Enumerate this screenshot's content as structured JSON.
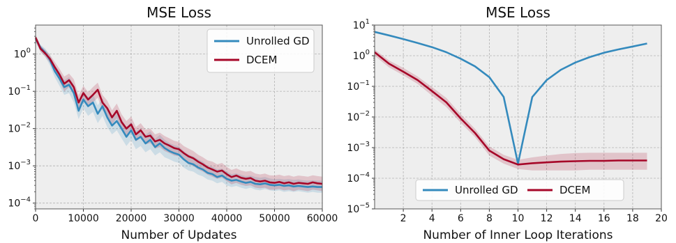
{
  "colors": {
    "unrolled_gd": "#348abd",
    "dcem": "#a60628",
    "plot_background": "#eeeeee",
    "grid": "#b2b2b2"
  },
  "chart_data": [
    {
      "type": "line",
      "title": "MSE Loss",
      "xlabel": "Number of Updates",
      "ylabel": "",
      "xlim": [
        0,
        60000
      ],
      "ylim": [
        7e-05,
        6
      ],
      "yscale": "log",
      "grid": true,
      "legend_placement": "top-right",
      "x_ticks": [
        {
          "value": 0,
          "label": "0"
        },
        {
          "value": 10000,
          "label": "10000"
        },
        {
          "value": 20000,
          "label": "20000"
        },
        {
          "value": 30000,
          "label": "30000"
        },
        {
          "value": 40000,
          "label": "40000"
        },
        {
          "value": 50000,
          "label": "50000"
        },
        {
          "value": 60000,
          "label": "60000"
        }
      ],
      "y_ticks": [
        {
          "value": 0.0001,
          "base": "10",
          "exp": "−4"
        },
        {
          "value": 0.001,
          "base": "10",
          "exp": "−3"
        },
        {
          "value": 0.01,
          "base": "10",
          "exp": "−2"
        },
        {
          "value": 0.1,
          "base": "10",
          "exp": "−1"
        },
        {
          "value": 1,
          "base": "10",
          "exp": "0"
        }
      ],
      "x": [
        0,
        1000,
        2000,
        3000,
        4000,
        5000,
        6000,
        7000,
        8000,
        9000,
        10000,
        11000,
        12000,
        13000,
        14000,
        15000,
        16000,
        17000,
        18000,
        19000,
        20000,
        21000,
        22000,
        23000,
        24000,
        25000,
        26000,
        27000,
        28000,
        29000,
        30000,
        31000,
        32000,
        33000,
        34000,
        35000,
        36000,
        37000,
        38000,
        39000,
        40000,
        41000,
        42000,
        43000,
        44000,
        45000,
        46000,
        47000,
        48000,
        49000,
        50000,
        51000,
        52000,
        53000,
        54000,
        55000,
        56000,
        57000,
        58000,
        59000,
        60000
      ],
      "series": [
        {
          "name": "Unrolled GD",
          "color": "#348abd",
          "values": [
            2.6,
            1.5,
            1.1,
            0.7,
            0.35,
            0.22,
            0.13,
            0.15,
            0.09,
            0.03,
            0.06,
            0.04,
            0.05,
            0.025,
            0.04,
            0.02,
            0.012,
            0.016,
            0.01,
            0.006,
            0.009,
            0.005,
            0.006,
            0.004,
            0.005,
            0.0032,
            0.004,
            0.003,
            0.0025,
            0.0022,
            0.002,
            0.0015,
            0.0012,
            0.0011,
            0.0009,
            0.0008,
            0.00065,
            0.0006,
            0.0005,
            0.00055,
            0.00045,
            0.0004,
            0.00042,
            0.00038,
            0.00035,
            0.00037,
            0.00033,
            0.00032,
            0.00034,
            0.00031,
            0.0003,
            0.00031,
            0.00029,
            0.0003,
            0.00028,
            0.00029,
            0.00028,
            0.00027,
            0.00028,
            0.00027,
            0.00027
          ],
          "lower": [
            2.1,
            1.2,
            0.85,
            0.5,
            0.24,
            0.14,
            0.08,
            0.09,
            0.05,
            0.018,
            0.035,
            0.022,
            0.028,
            0.014,
            0.022,
            0.011,
            0.007,
            0.009,
            0.0055,
            0.0034,
            0.005,
            0.0028,
            0.0034,
            0.0023,
            0.0028,
            0.0019,
            0.0023,
            0.0017,
            0.0015,
            0.0013,
            0.0012,
            0.0009,
            0.00075,
            0.0007,
            0.00058,
            0.00052,
            0.00043,
            0.0004,
            0.00034,
            0.00037,
            0.0003,
            0.00027,
            0.00029,
            0.00026,
            0.00024,
            0.00026,
            0.00023,
            0.00022,
            0.00024,
            0.00022,
            0.00021,
            0.00022,
            0.0002,
            0.00021,
            0.0002,
            0.00021,
            0.0002,
            0.00019,
            0.0002,
            0.00019,
            0.00019
          ],
          "upper": [
            3.1,
            1.8,
            1.4,
            0.95,
            0.5,
            0.33,
            0.2,
            0.24,
            0.15,
            0.05,
            0.1,
            0.07,
            0.085,
            0.042,
            0.065,
            0.034,
            0.021,
            0.027,
            0.017,
            0.011,
            0.015,
            0.0085,
            0.01,
            0.0068,
            0.0085,
            0.0053,
            0.0068,
            0.005,
            0.0041,
            0.0036,
            0.0033,
            0.0025,
            0.002,
            0.0018,
            0.0015,
            0.0013,
            0.001,
            0.00095,
            0.0008,
            0.00085,
            0.0007,
            0.0006,
            0.00063,
            0.00057,
            0.00053,
            0.00055,
            0.0005,
            0.00048,
            0.0005,
            0.00046,
            0.00044,
            0.00045,
            0.00043,
            0.00044,
            0.00042,
            0.00043,
            0.00041,
            0.0004,
            0.00041,
            0.0004,
            0.0004
          ]
        },
        {
          "name": "DCEM",
          "color": "#a60628",
          "values": [
            2.8,
            1.4,
            1.05,
            0.75,
            0.45,
            0.28,
            0.16,
            0.2,
            0.13,
            0.05,
            0.09,
            0.06,
            0.08,
            0.11,
            0.05,
            0.035,
            0.02,
            0.03,
            0.015,
            0.01,
            0.013,
            0.007,
            0.009,
            0.006,
            0.0065,
            0.0045,
            0.005,
            0.004,
            0.0035,
            0.003,
            0.0028,
            0.0022,
            0.0018,
            0.0016,
            0.0013,
            0.0011,
            0.0009,
            0.0008,
            0.0007,
            0.00075,
            0.0006,
            0.0005,
            0.00055,
            0.00048,
            0.00045,
            0.00047,
            0.0004,
            0.00038,
            0.0004,
            0.00036,
            0.00035,
            0.00037,
            0.00034,
            0.00036,
            0.00033,
            0.00035,
            0.00034,
            0.00033,
            0.00036,
            0.00034,
            0.00033
          ],
          "lower": [
            2.3,
            1.15,
            0.85,
            0.58,
            0.33,
            0.19,
            0.1,
            0.13,
            0.08,
            0.032,
            0.057,
            0.038,
            0.05,
            0.068,
            0.031,
            0.022,
            0.013,
            0.019,
            0.0096,
            0.0064,
            0.0082,
            0.0045,
            0.0057,
            0.0038,
            0.0041,
            0.0029,
            0.0032,
            0.0025,
            0.0022,
            0.0019,
            0.0018,
            0.0014,
            0.0011,
            0.001,
            0.0008,
            0.0007,
            0.00058,
            0.00051,
            0.00045,
            0.00048,
            0.00039,
            0.00032,
            0.00035,
            0.00031,
            0.00029,
            0.0003,
            0.00026,
            0.00025,
            0.00026,
            0.00023,
            0.00023,
            0.00024,
            0.00022,
            0.00023,
            0.00021,
            0.00023,
            0.00022,
            0.00021,
            0.00023,
            0.00022,
            0.00021
          ],
          "upper": [
            3.3,
            1.7,
            1.3,
            0.95,
            0.62,
            0.4,
            0.25,
            0.3,
            0.21,
            0.078,
            0.14,
            0.095,
            0.13,
            0.17,
            0.08,
            0.056,
            0.031,
            0.047,
            0.024,
            0.016,
            0.021,
            0.011,
            0.014,
            0.0094,
            0.01,
            0.007,
            0.0078,
            0.0063,
            0.0055,
            0.0047,
            0.0044,
            0.0034,
            0.0029,
            0.0025,
            0.002,
            0.0017,
            0.0014,
            0.0013,
            0.0011,
            0.0012,
            0.00094,
            0.00078,
            0.00086,
            0.00075,
            0.0007,
            0.00073,
            0.00062,
            0.00059,
            0.00062,
            0.00056,
            0.00055,
            0.00058,
            0.00053,
            0.00056,
            0.00051,
            0.00055,
            0.00053,
            0.00051,
            0.00056,
            0.00053,
            0.00051
          ]
        }
      ]
    },
    {
      "type": "line",
      "title": "MSE Loss",
      "xlabel": "Number of Inner Loop Iterations",
      "ylabel": "",
      "xlim": [
        0,
        20
      ],
      "ylim": [
        1e-05,
        10
      ],
      "yscale": "log",
      "grid": true,
      "legend_placement": "bottom-center",
      "x_ticks": [
        {
          "value": 2,
          "label": "2"
        },
        {
          "value": 4,
          "label": "4"
        },
        {
          "value": 6,
          "label": "6"
        },
        {
          "value": 8,
          "label": "8"
        },
        {
          "value": 10,
          "label": "10"
        },
        {
          "value": 12,
          "label": "12"
        },
        {
          "value": 14,
          "label": "14"
        },
        {
          "value": 16,
          "label": "16"
        },
        {
          "value": 18,
          "label": "18"
        },
        {
          "value": 20,
          "label": "20"
        }
      ],
      "y_ticks": [
        {
          "value": 1e-05,
          "base": "10",
          "exp": "−5"
        },
        {
          "value": 0.0001,
          "base": "10",
          "exp": "−4"
        },
        {
          "value": 0.001,
          "base": "10",
          "exp": "−3"
        },
        {
          "value": 0.01,
          "base": "10",
          "exp": "−2"
        },
        {
          "value": 0.1,
          "base": "10",
          "exp": "−1"
        },
        {
          "value": 1,
          "base": "10",
          "exp": "0"
        },
        {
          "value": 10,
          "base": "10",
          "exp": "1"
        }
      ],
      "x": [
        0,
        1,
        2,
        3,
        4,
        5,
        6,
        7,
        8,
        9,
        10,
        11,
        12,
        13,
        14,
        15,
        16,
        17,
        18,
        19
      ],
      "series": [
        {
          "name": "Unrolled GD",
          "color": "#348abd",
          "values": [
            6,
            4.6,
            3.5,
            2.6,
            1.9,
            1.3,
            0.8,
            0.45,
            0.2,
            0.045,
            0.0003,
            0.045,
            0.16,
            0.35,
            0.6,
            0.9,
            1.25,
            1.6,
            2.0,
            2.5
          ]
        },
        {
          "name": "DCEM",
          "color": "#a60628",
          "values": [
            1.3,
            0.55,
            0.3,
            0.16,
            0.07,
            0.03,
            0.009,
            0.003,
            0.0008,
            0.00042,
            0.00028,
            0.00031,
            0.00033,
            0.00035,
            0.00036,
            0.00037,
            0.00037,
            0.00038,
            0.00038,
            0.00038
          ],
          "lower": [
            1.0,
            0.42,
            0.23,
            0.12,
            0.05,
            0.021,
            0.0065,
            0.0022,
            0.00055,
            0.0003,
            0.0002,
            0.00018,
            0.00018,
            0.00018,
            0.00018,
            0.00019,
            0.00019,
            0.00019,
            0.00019,
            0.00019
          ],
          "upper": [
            1.6,
            0.7,
            0.4,
            0.21,
            0.095,
            0.042,
            0.0125,
            0.0041,
            0.0011,
            0.00058,
            0.0004,
            0.00048,
            0.00055,
            0.00062,
            0.00066,
            0.00068,
            0.00068,
            0.00068,
            0.00068,
            0.00068
          ]
        }
      ]
    }
  ]
}
